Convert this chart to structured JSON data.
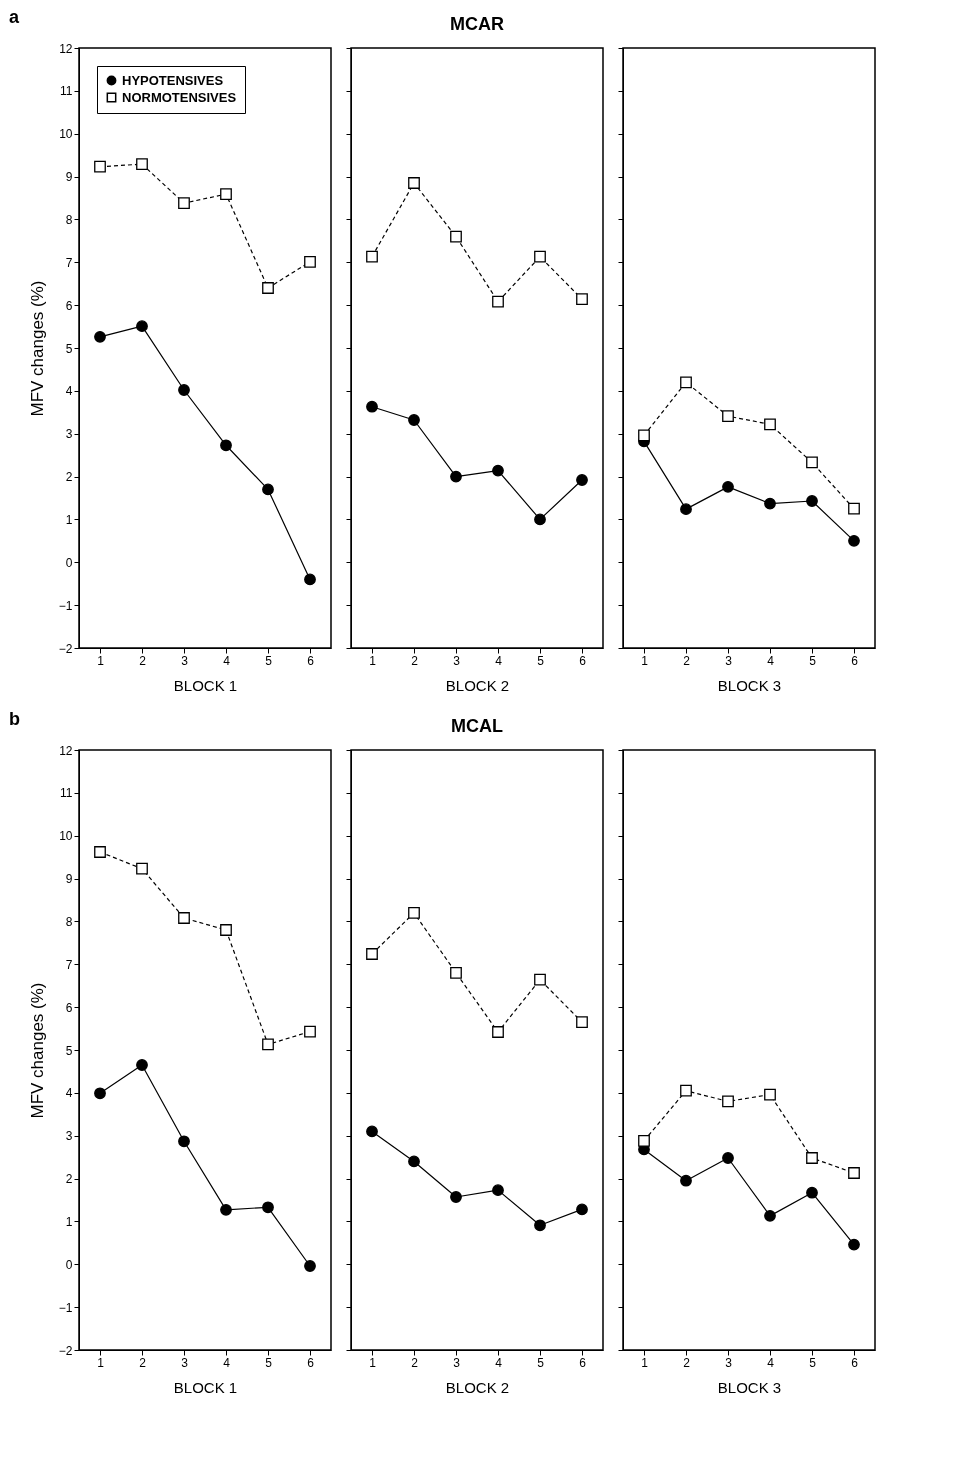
{
  "chart_data": [
    {
      "type": "line",
      "annotations": [
        "a"
      ],
      "xlabel": "BLOCK 1",
      "ylabel": "MFV changes (%)",
      "categories": [
        "1",
        "2",
        "3",
        "4",
        "5",
        "6"
      ],
      "ylim": [
        -2,
        12
      ],
      "yticks": [
        -2,
        -1,
        0,
        1,
        2,
        3,
        4,
        5,
        6,
        7,
        8,
        9,
        10,
        11,
        12
      ],
      "legend": "top left",
      "series": [
        {
          "name": "HYPOTENSIVES",
          "color": "#000000",
          "marker": "circle",
          "line_style": "solid",
          "values": [
            5.26,
            5.51,
            4.02,
            2.73,
            1.7,
            -0.4
          ]
        },
        {
          "name": "NORMOTENSIVES",
          "color": "#000000",
          "marker": "square",
          "line_style": "dashed",
          "values": [
            9.23,
            9.29,
            8.38,
            8.59,
            6.4,
            7.01
          ]
        }
      ]
    },
    {
      "type": "line",
      "title": "MCAR",
      "xlabel": "BLOCK 2",
      "categories": [
        "1",
        "2",
        "3",
        "4",
        "5",
        "6"
      ],
      "ylim": [
        -2,
        12
      ],
      "yticks": [
        -2,
        -1,
        0,
        1,
        2,
        3,
        4,
        5,
        6,
        7,
        8,
        9,
        10,
        11,
        12
      ],
      "tick_labels": "x",
      "series": [
        {
          "color": "#000000",
          "marker": "circle",
          "line_style": "solid",
          "values": [
            3.63,
            3.32,
            2.0,
            2.14,
            1.0,
            1.92
          ]
        },
        {
          "color": "#000000",
          "marker": "square",
          "line_style": "dashed",
          "values": [
            7.13,
            8.85,
            7.6,
            6.08,
            7.13,
            6.14
          ]
        }
      ]
    },
    {
      "type": "line",
      "xlabel": "BLOCK 3",
      "categories": [
        "1",
        "2",
        "3",
        "4",
        "5",
        "6"
      ],
      "ylim": [
        -2,
        12
      ],
      "yticks": [
        -2,
        -1,
        0,
        1,
        2,
        3,
        4,
        5,
        6,
        7,
        8,
        9,
        10,
        11,
        12
      ],
      "tick_labels": "x",
      "series": [
        {
          "color": "#000000",
          "marker": "circle",
          "line_style": "solid",
          "values": [
            2.82,
            1.24,
            1.76,
            1.37,
            1.43,
            0.5
          ]
        },
        {
          "color": "#000000",
          "marker": "square",
          "line_style": "dashed",
          "values": [
            2.96,
            4.2,
            3.41,
            3.22,
            2.33,
            1.25
          ]
        }
      ]
    },
    {
      "type": "line",
      "annotations": [
        "b"
      ],
      "xlabel": "BLOCK 1",
      "ylabel": "MFV changes (%)",
      "categories": [
        "1",
        "2",
        "3",
        "4",
        "5",
        "6"
      ],
      "ylim": [
        -2,
        12
      ],
      "yticks": [
        -2,
        -1,
        0,
        1,
        2,
        3,
        4,
        5,
        6,
        7,
        8,
        9,
        10,
        11,
        12
      ],
      "series": [
        {
          "color": "#000000",
          "marker": "circle",
          "line_style": "solid",
          "values": [
            3.99,
            4.65,
            2.87,
            1.27,
            1.33,
            -0.04
          ]
        },
        {
          "color": "#000000",
          "marker": "square",
          "line_style": "dashed",
          "values": [
            9.62,
            9.23,
            8.08,
            7.8,
            5.13,
            5.43
          ]
        }
      ]
    },
    {
      "type": "line",
      "title": "MCAL",
      "xlabel": "BLOCK 2",
      "categories": [
        "1",
        "2",
        "3",
        "4",
        "5",
        "6"
      ],
      "ylim": [
        -2,
        12
      ],
      "yticks": [
        -2,
        -1,
        0,
        1,
        2,
        3,
        4,
        5,
        6,
        7,
        8,
        9,
        10,
        11,
        12
      ],
      "tick_labels": "x",
      "series": [
        {
          "color": "#000000",
          "marker": "circle",
          "line_style": "solid",
          "values": [
            3.1,
            2.4,
            1.57,
            1.73,
            0.91,
            1.28
          ]
        },
        {
          "color": "#000000",
          "marker": "square",
          "line_style": "dashed",
          "values": [
            7.24,
            8.2,
            6.8,
            5.42,
            6.64,
            5.65
          ]
        }
      ]
    },
    {
      "type": "line",
      "xlabel": "BLOCK 3",
      "categories": [
        "1",
        "2",
        "3",
        "4",
        "5",
        "6"
      ],
      "ylim": [
        -2,
        12
      ],
      "yticks": [
        -2,
        -1,
        0,
        1,
        2,
        3,
        4,
        5,
        6,
        7,
        8,
        9,
        10,
        11,
        12
      ],
      "tick_labels": "x",
      "series": [
        {
          "color": "#000000",
          "marker": "circle",
          "line_style": "solid",
          "values": [
            2.68,
            1.95,
            2.48,
            1.13,
            1.67,
            0.46
          ]
        },
        {
          "color": "#000000",
          "marker": "square",
          "line_style": "dashed",
          "values": [
            2.88,
            4.05,
            3.8,
            3.96,
            2.48,
            2.13
          ]
        }
      ]
    }
  ]
}
